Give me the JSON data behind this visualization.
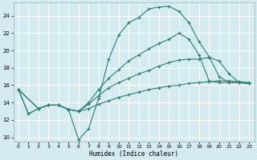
{
  "xlabel": "Humidex (Indice chaleur)",
  "bg_color": "#d4ecf0",
  "grid_color": "#ffffff",
  "line_color": "#2d7d72",
  "xlim": [
    -0.5,
    23.5
  ],
  "ylim": [
    9.5,
    25.5
  ],
  "xticks": [
    0,
    1,
    2,
    3,
    4,
    5,
    6,
    7,
    8,
    9,
    10,
    11,
    12,
    13,
    14,
    15,
    16,
    17,
    18,
    19,
    20,
    21,
    22,
    23
  ],
  "yticks": [
    10,
    12,
    14,
    16,
    18,
    20,
    22,
    24
  ],
  "lines": [
    {
      "x": [
        0,
        1,
        2,
        3,
        4,
        5,
        6,
        7,
        8,
        9,
        10,
        11,
        12,
        13,
        14,
        15,
        16,
        17,
        18,
        19,
        20,
        21,
        22,
        23
      ],
      "y": [
        15.5,
        12.7,
        13.3,
        13.7,
        13.7,
        13.2,
        9.7,
        11.0,
        14.5,
        19.0,
        21.8,
        23.2,
        23.8,
        24.8,
        25.0,
        25.1,
        24.5,
        23.2,
        21.0,
        19.3,
        17.0,
        16.3,
        16.3,
        16.2
      ]
    },
    {
      "x": [
        0,
        1,
        2,
        3,
        4,
        5,
        6,
        7,
        8,
        9,
        10,
        11,
        12,
        13,
        14,
        15,
        16,
        17,
        18,
        19,
        20,
        21,
        22,
        23
      ],
      "y": [
        15.5,
        12.7,
        13.3,
        13.7,
        13.7,
        13.2,
        13.0,
        14.0,
        15.5,
        16.8,
        17.8,
        18.8,
        19.5,
        20.2,
        20.8,
        21.3,
        22.0,
        21.3,
        19.5,
        16.5,
        16.3,
        16.3,
        16.3,
        16.2
      ]
    },
    {
      "x": [
        0,
        2,
        3,
        4,
        5,
        6,
        7,
        8,
        9,
        10,
        11,
        12,
        13,
        14,
        15,
        16,
        17,
        18,
        19,
        20,
        21,
        22,
        23
      ],
      "y": [
        15.5,
        13.3,
        13.7,
        13.7,
        13.2,
        13.0,
        13.8,
        14.8,
        15.7,
        16.3,
        16.8,
        17.3,
        17.7,
        18.2,
        18.6,
        18.9,
        19.0,
        19.0,
        19.2,
        18.8,
        17.3,
        16.3,
        16.2
      ]
    },
    {
      "x": [
        0,
        2,
        3,
        4,
        5,
        6,
        7,
        8,
        9,
        10,
        11,
        12,
        13,
        14,
        15,
        16,
        17,
        18,
        19,
        20,
        21,
        22,
        23
      ],
      "y": [
        15.5,
        13.3,
        13.7,
        13.7,
        13.2,
        13.0,
        13.3,
        13.8,
        14.2,
        14.6,
        14.9,
        15.2,
        15.5,
        15.7,
        15.9,
        16.0,
        16.2,
        16.3,
        16.4,
        16.5,
        16.5,
        16.4,
        16.3
      ]
    }
  ]
}
